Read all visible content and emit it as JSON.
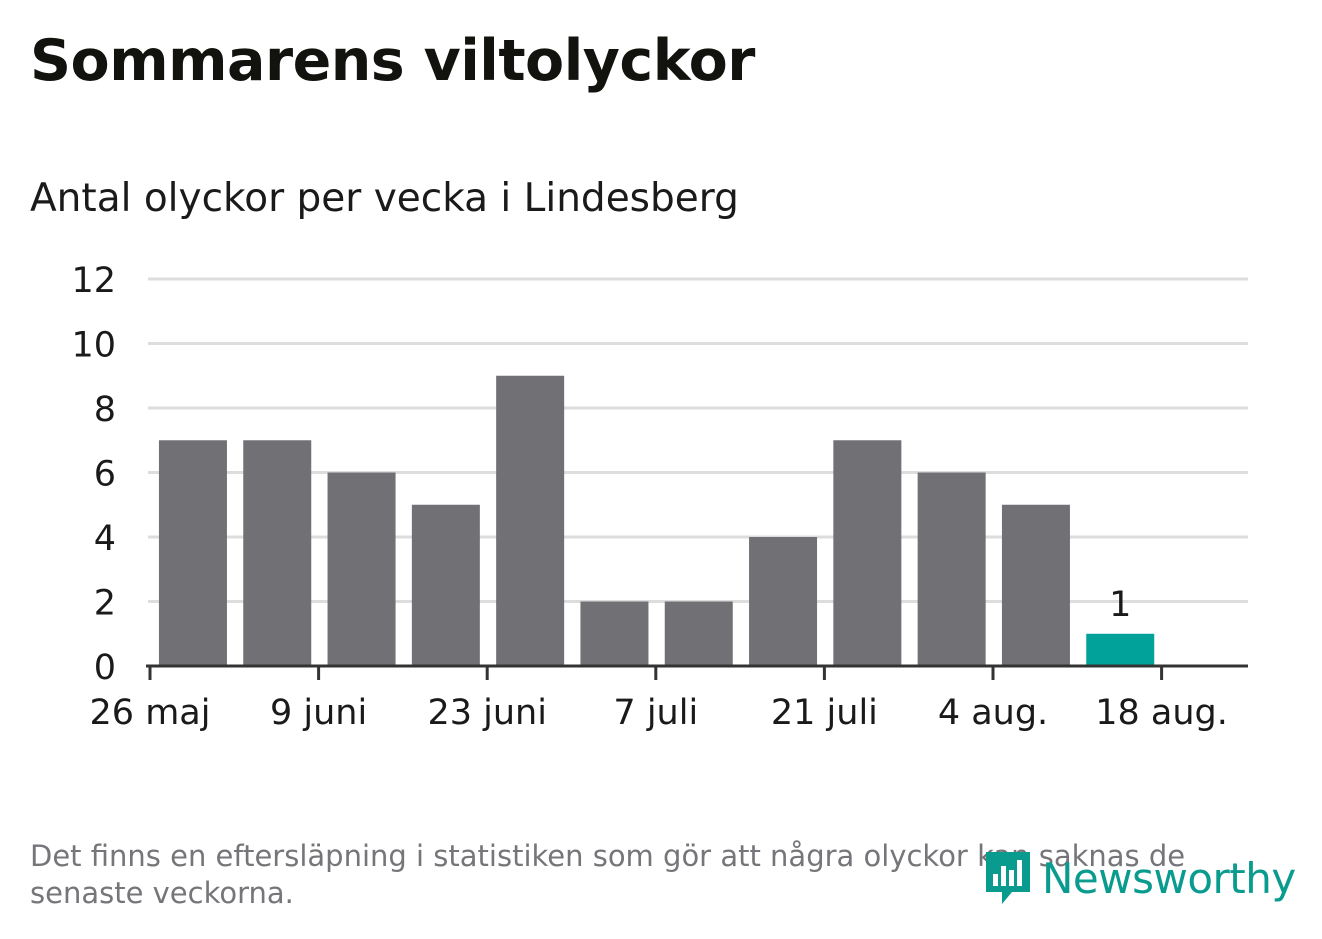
{
  "header": {
    "title": "Sommarens viltolyckor",
    "subtitle": "Antal olyckor per vecka i Lindesberg"
  },
  "footer": {
    "note": "Det finns en eftersläpning i statistiken som gör att några olyckor kan saknas de senaste veckorna.",
    "brand": "Newsworthy",
    "brand_icon": "bar-chart-logo-icon"
  },
  "colors": {
    "bar": "#707075",
    "highlight": "#00a29a",
    "grid": "#dddddd",
    "axis": "#333333",
    "brand": "#0a9b8f"
  },
  "chart_data": {
    "type": "bar",
    "title": "Sommarens viltolyckor",
    "subtitle": "Antal olyckor per vecka i Lindesberg",
    "xlabel": "",
    "ylabel": "",
    "ylim": [
      0,
      12
    ],
    "yticks": [
      0,
      2,
      4,
      6,
      8,
      10,
      12
    ],
    "x_tick_labels": [
      "26 maj",
      "9 juni",
      "23 juni",
      "7 juli",
      "21 juli",
      "4 aug.",
      "18 aug."
    ],
    "values": [
      7,
      7,
      6,
      5,
      9,
      2,
      2,
      4,
      7,
      6,
      5,
      1
    ],
    "highlight_index": 11,
    "data_labels": [
      {
        "index": 11,
        "text": "1"
      }
    ],
    "grid": true
  }
}
